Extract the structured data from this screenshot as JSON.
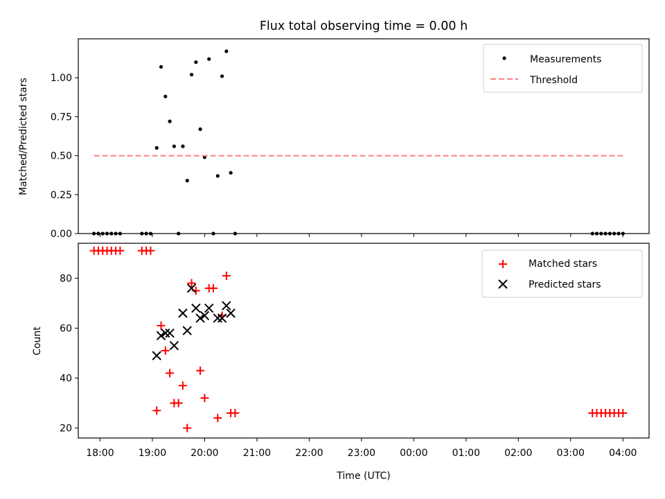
{
  "chart_data": [
    {
      "type": "scatter",
      "title": "Flux total observing time = 0.00 h",
      "xlabel": "",
      "ylabel": "Matched/Predicted stars",
      "x_axis": "time",
      "xlim": [
        "17:35",
        "04:30"
      ],
      "ylim": [
        0,
        1.25
      ],
      "yticks": [
        0.0,
        0.25,
        0.5,
        0.75,
        1.0
      ],
      "ytick_labels": [
        "0.00",
        "0.25",
        "0.50",
        "0.75",
        "1.00"
      ],
      "grid": false,
      "legend_position": "upper right",
      "series": [
        {
          "name": "Measurements",
          "kind": "scatter",
          "marker": "dot",
          "color": "#000000",
          "points": [
            {
              "x": "17:53",
              "y": 0.0
            },
            {
              "x": "17:58",
              "y": 0.0
            },
            {
              "x": "18:03",
              "y": 0.0
            },
            {
              "x": "18:08",
              "y": 0.0
            },
            {
              "x": "18:13",
              "y": 0.0
            },
            {
              "x": "18:18",
              "y": 0.0
            },
            {
              "x": "18:23",
              "y": 0.0
            },
            {
              "x": "18:48",
              "y": 0.0
            },
            {
              "x": "18:53",
              "y": 0.0
            },
            {
              "x": "18:58",
              "y": 0.0
            },
            {
              "x": "19:05",
              "y": 0.55
            },
            {
              "x": "19:10",
              "y": 1.07
            },
            {
              "x": "19:15",
              "y": 0.88
            },
            {
              "x": "19:20",
              "y": 0.72
            },
            {
              "x": "19:25",
              "y": 0.56
            },
            {
              "x": "19:30",
              "y": 0.0
            },
            {
              "x": "19:35",
              "y": 0.56
            },
            {
              "x": "19:40",
              "y": 0.34
            },
            {
              "x": "19:45",
              "y": 1.02
            },
            {
              "x": "19:50",
              "y": 1.1
            },
            {
              "x": "19:55",
              "y": 0.67
            },
            {
              "x": "20:00",
              "y": 0.49
            },
            {
              "x": "20:05",
              "y": 1.12
            },
            {
              "x": "20:10",
              "y": 0.0
            },
            {
              "x": "20:15",
              "y": 0.37
            },
            {
              "x": "20:20",
              "y": 1.01
            },
            {
              "x": "20:25",
              "y": 1.17
            },
            {
              "x": "20:30",
              "y": 0.39
            },
            {
              "x": "20:35",
              "y": 0.0
            },
            {
              "x": "03:25",
              "y": 0.0
            },
            {
              "x": "03:30",
              "y": 0.0
            },
            {
              "x": "03:35",
              "y": 0.0
            },
            {
              "x": "03:40",
              "y": 0.0
            },
            {
              "x": "03:45",
              "y": 0.0
            },
            {
              "x": "03:50",
              "y": 0.0
            },
            {
              "x": "03:55",
              "y": 0.0
            },
            {
              "x": "04:00",
              "y": 0.0
            }
          ]
        },
        {
          "name": "Threshold",
          "kind": "line",
          "style": "dashed",
          "color": "#ff7f7f",
          "points": [
            {
              "x": "17:53",
              "y": 0.5
            },
            {
              "x": "04:00",
              "y": 0.5
            }
          ]
        }
      ]
    },
    {
      "type": "scatter",
      "title": "",
      "xlabel": "Time (UTC)",
      "ylabel": "Count",
      "x_axis": "time",
      "xlim": [
        "17:35",
        "04:30"
      ],
      "ylim": [
        16,
        94
      ],
      "xticks": [
        "18:00",
        "19:00",
        "20:00",
        "21:00",
        "22:00",
        "23:00",
        "00:00",
        "01:00",
        "02:00",
        "03:00",
        "04:00"
      ],
      "yticks": [
        20,
        40,
        60,
        80
      ],
      "ytick_labels": [
        "20",
        "40",
        "60",
        "80"
      ],
      "grid": false,
      "legend_position": "upper right",
      "series": [
        {
          "name": "Matched stars",
          "kind": "scatter",
          "marker": "plus",
          "color": "#ff0000",
          "points": [
            {
              "x": "17:53",
              "y": 91
            },
            {
              "x": "17:58",
              "y": 91
            },
            {
              "x": "18:03",
              "y": 91
            },
            {
              "x": "18:08",
              "y": 91
            },
            {
              "x": "18:13",
              "y": 91
            },
            {
              "x": "18:18",
              "y": 91
            },
            {
              "x": "18:23",
              "y": 91
            },
            {
              "x": "18:48",
              "y": 91
            },
            {
              "x": "18:53",
              "y": 91
            },
            {
              "x": "18:58",
              "y": 91
            },
            {
              "x": "19:05",
              "y": 27
            },
            {
              "x": "19:10",
              "y": 61
            },
            {
              "x": "19:15",
              "y": 51
            },
            {
              "x": "19:20",
              "y": 42
            },
            {
              "x": "19:25",
              "y": 30
            },
            {
              "x": "19:30",
              "y": 30
            },
            {
              "x": "19:35",
              "y": 37
            },
            {
              "x": "19:40",
              "y": 20
            },
            {
              "x": "19:45",
              "y": 78
            },
            {
              "x": "19:50",
              "y": 75
            },
            {
              "x": "19:55",
              "y": 43
            },
            {
              "x": "20:00",
              "y": 32
            },
            {
              "x": "20:05",
              "y": 76
            },
            {
              "x": "20:10",
              "y": 76
            },
            {
              "x": "20:15",
              "y": 24
            },
            {
              "x": "20:20",
              "y": 65
            },
            {
              "x": "20:25",
              "y": 81
            },
            {
              "x": "20:30",
              "y": 26
            },
            {
              "x": "20:35",
              "y": 26
            },
            {
              "x": "03:25",
              "y": 26
            },
            {
              "x": "03:30",
              "y": 26
            },
            {
              "x": "03:35",
              "y": 26
            },
            {
              "x": "03:40",
              "y": 26
            },
            {
              "x": "03:45",
              "y": 26
            },
            {
              "x": "03:50",
              "y": 26
            },
            {
              "x": "03:55",
              "y": 26
            },
            {
              "x": "04:00",
              "y": 26
            }
          ]
        },
        {
          "name": "Predicted stars",
          "kind": "scatter",
          "marker": "x",
          "color": "#000000",
          "points": [
            {
              "x": "19:05",
              "y": 49
            },
            {
              "x": "19:10",
              "y": 57
            },
            {
              "x": "19:15",
              "y": 58
            },
            {
              "x": "19:20",
              "y": 58
            },
            {
              "x": "19:25",
              "y": 53
            },
            {
              "x": "19:35",
              "y": 66
            },
            {
              "x": "19:40",
              "y": 59
            },
            {
              "x": "19:45",
              "y": 76
            },
            {
              "x": "19:50",
              "y": 68
            },
            {
              "x": "19:55",
              "y": 64
            },
            {
              "x": "20:00",
              "y": 65
            },
            {
              "x": "20:05",
              "y": 68
            },
            {
              "x": "20:15",
              "y": 64
            },
            {
              "x": "20:20",
              "y": 64
            },
            {
              "x": "20:25",
              "y": 69
            },
            {
              "x": "20:30",
              "y": 66
            }
          ]
        }
      ]
    }
  ]
}
